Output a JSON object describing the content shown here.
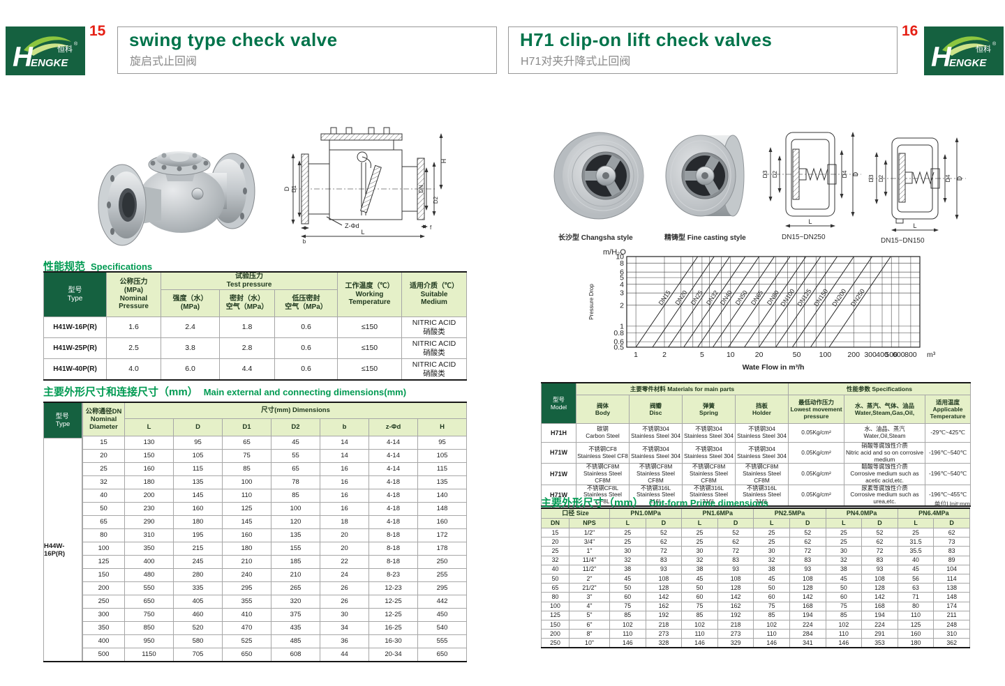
{
  "header": {
    "left": {
      "num": "15",
      "title": "swing type check valve",
      "subtitle": "旋启式止回阀"
    },
    "right": {
      "num": "16",
      "title": "H71 clip-on lift check valves",
      "subtitle": "H71对夹升降式止回阀"
    },
    "logo": {
      "h": "H",
      "en": "ENGKE",
      "cn": "恒科",
      "reg": "®"
    },
    "colors": {
      "brand_green": "#156140",
      "title_green": "#00734a",
      "accent_green": "#009a52",
      "page_red": "#e51f14",
      "cell_green": "#e5f0c8"
    }
  },
  "left_page": {
    "spec_title_cn": "性能规范",
    "spec_title_en": "Specifications",
    "spec_table": {
      "h_type": "型号\nType",
      "h_nominal": "公称压力\n(MPa)\nNominal\nPressure",
      "h_test": "试验压力\nTest pressure",
      "h_strength": "强度（水）\n(MPa)",
      "h_seal": "密封（水）\n空气（MPa）",
      "h_low": "低压密封\n空气（MPa）",
      "h_working": "工作温度（℃）\nWorking\nTemperature",
      "h_medium": "适用介质（℃）\nSuitable\nMedium",
      "rows": [
        [
          "H41W-16P(R)",
          "1.6",
          "2.4",
          "1.8",
          "0.6",
          "≤150",
          "NITRIC ACID\n硝酸类"
        ],
        [
          "H41W-25P(R)",
          "2.5",
          "3.8",
          "2.8",
          "0.6",
          "≤150",
          "NITRIC ACID\n硝酸类"
        ],
        [
          "H41W-40P(R)",
          "4.0",
          "6.0",
          "4.4",
          "0.6",
          "≤150",
          "NITRIC ACID\n硝酸类"
        ]
      ]
    },
    "dims_title_cn": "主要外形尺寸和连接尺寸（mm）",
    "dims_title_en": "Main external and connecting dimensions(mm)",
    "dims_table": {
      "h_type": "型号\nType",
      "h_dn": "公称通径DN\nNominal\nDiameter",
      "h_dims": "尺寸(mm) Dimensions",
      "cols": [
        "L",
        "D",
        "D1",
        "D2",
        "b",
        "z-Φd",
        "H"
      ],
      "type_value": "H44W-16P(R)",
      "rows": [
        [
          "15",
          "130",
          "95",
          "65",
          "45",
          "14",
          "4-14",
          "95"
        ],
        [
          "20",
          "150",
          "105",
          "75",
          "55",
          "14",
          "4-14",
          "105"
        ],
        [
          "25",
          "160",
          "115",
          "85",
          "65",
          "16",
          "4-14",
          "115"
        ],
        [
          "32",
          "180",
          "135",
          "100",
          "78",
          "16",
          "4-18",
          "135"
        ],
        [
          "40",
          "200",
          "145",
          "110",
          "85",
          "16",
          "4-18",
          "140"
        ],
        [
          "50",
          "230",
          "160",
          "125",
          "100",
          "16",
          "4-18",
          "148"
        ],
        [
          "65",
          "290",
          "180",
          "145",
          "120",
          "18",
          "4-18",
          "160"
        ],
        [
          "80",
          "310",
          "195",
          "160",
          "135",
          "20",
          "8-18",
          "172"
        ],
        [
          "100",
          "350",
          "215",
          "180",
          "155",
          "20",
          "8-18",
          "178"
        ],
        [
          "125",
          "400",
          "245",
          "210",
          "185",
          "22",
          "8-18",
          "250"
        ],
        [
          "150",
          "480",
          "280",
          "240",
          "210",
          "24",
          "8-23",
          "255"
        ],
        [
          "200",
          "550",
          "335",
          "295",
          "265",
          "26",
          "12-23",
          "295"
        ],
        [
          "250",
          "650",
          "405",
          "355",
          "320",
          "26",
          "12-25",
          "442"
        ],
        [
          "300",
          "750",
          "460",
          "410",
          "375",
          "30",
          "12-25",
          "450"
        ],
        [
          "350",
          "850",
          "520",
          "470",
          "435",
          "34",
          "16-25",
          "540"
        ],
        [
          "400",
          "950",
          "580",
          "525",
          "485",
          "36",
          "16-30",
          "555"
        ],
        [
          "500",
          "1150",
          "705",
          "650",
          "608",
          "44",
          "20-34",
          "650"
        ]
      ]
    },
    "drawing_labels": {
      "d": "D",
      "d1": "D1",
      "h": "H",
      "dn": "DN",
      "d2": "D2",
      "zphid": "Z-Φd",
      "b": "b",
      "l": "L",
      "f": "f"
    }
  },
  "right_page": {
    "captions": {
      "photo1": "长沙型 Changsha style",
      "photo2": "精铸型 Fine casting style",
      "drawing1": "DN15~DN250",
      "drawing2": "DN15~DN150"
    },
    "drawing_labels": {
      "d3": "D3",
      "d2": "D2",
      "d4": "D4",
      "d": "D",
      "l": "L"
    },
    "materials_table": {
      "h_model": "型号\nModel",
      "h_materials": "主要零件材料 Materials for main parts",
      "h_body": "阀体\nBody",
      "h_disc": "阀瓣\nDisc",
      "h_spring": "弹簧\nSpring",
      "h_holder": "挡板\nHolder",
      "h_specs": "性能参数 Specifications",
      "h_pressure": "最低动作压力\nLowest movement\npressure",
      "h_media": "水、蒸汽、气体、油品\nWater,Steam,Gas,Oil,",
      "h_temp": "适用温度\nApplicable\nTemperature",
      "rows": [
        [
          "H71H",
          "碳钢\nCarbon Steel",
          "不锈钢304\nStainless Steel 304",
          "不锈钢304\nStainless Steel 304",
          "不锈钢304\nStainless Steel 304",
          "0.05Kg/cm²",
          "水、油品、蒸汽\nWater,Oil,Steam",
          "-29℃~425℃"
        ],
        [
          "H71W",
          "不锈钢CF8\nStainless Steel CF8",
          "不锈钢304\nStainless Steel 304",
          "不锈钢304\nStainless Steel 304",
          "不锈钢304\nStainless Steel 304",
          "0.05Kg/cm²",
          "硝酸等腐蚀性介质\nNitric acid and so on corrosive medium",
          "-196℃~540℃"
        ],
        [
          "H71W",
          "不锈钢CF8M\nStainless Steel CF8M",
          "不锈钢CF8M\nStainless Steel CF8M",
          "不锈钢CF8M\nStainless Steel CF8M",
          "不锈钢CF8M\nStainless Steel CF8M",
          "0.05Kg/cm²",
          "醋酸等腐蚀性介质\nCorrosive medium such as acetic acid,etc.",
          "-196℃~540℃"
        ],
        [
          "H71W",
          "不锈钢CF8L\nStainless Steel CF8L",
          "不锈钢316L\nStainless Steel 316L",
          "不锈钢316L\nStainless Steel 316L",
          "不锈钢316L\nStainless Steel 316L",
          "0.05Kg/cm²",
          "尿素等腐蚀性介质\nCorrosive medium such as urea,etc.",
          "-196℃~455℃"
        ]
      ]
    },
    "outform_title_cn": "主要外形尺寸（mm）",
    "outform_title_en": "Out-form Prime dimensions",
    "outform_unit": "单位Unit:mm",
    "outform_table": {
      "h_size": "口径 Size",
      "h_dn": "DN",
      "h_nps": "NPS",
      "pn_groups": [
        "PN1.0MPa",
        "PN1.6MPa",
        "PN2.5MPa",
        "PN4.0MPa",
        "PN6.4MPa"
      ],
      "h_l": "L",
      "h_d": "D",
      "rows": [
        [
          "15",
          "1/2\"",
          "25",
          "52",
          "25",
          "52",
          "25",
          "52",
          "25",
          "52",
          "25",
          "62"
        ],
        [
          "20",
          "3/4\"",
          "25",
          "62",
          "25",
          "62",
          "25",
          "62",
          "25",
          "62",
          "31.5",
          "73"
        ],
        [
          "25",
          "1\"",
          "30",
          "72",
          "30",
          "72",
          "30",
          "72",
          "30",
          "72",
          "35.5",
          "83"
        ],
        [
          "32",
          "11/4\"",
          "32",
          "83",
          "32",
          "83",
          "32",
          "83",
          "32",
          "83",
          "40",
          "89"
        ],
        [
          "40",
          "11/2\"",
          "38",
          "93",
          "38",
          "93",
          "38",
          "93",
          "38",
          "93",
          "45",
          "104"
        ],
        [
          "50",
          "2\"",
          "45",
          "108",
          "45",
          "108",
          "45",
          "108",
          "45",
          "108",
          "56",
          "114"
        ],
        [
          "65",
          "21/2\"",
          "50",
          "128",
          "50",
          "128",
          "50",
          "128",
          "50",
          "128",
          "63",
          "138"
        ],
        [
          "80",
          "3\"",
          "60",
          "142",
          "60",
          "142",
          "60",
          "142",
          "60",
          "142",
          "71",
          "148"
        ],
        [
          "100",
          "4\"",
          "75",
          "162",
          "75",
          "162",
          "75",
          "168",
          "75",
          "168",
          "80",
          "174"
        ],
        [
          "125",
          "5\"",
          "85",
          "192",
          "85",
          "192",
          "85",
          "194",
          "85",
          "194",
          "110",
          "211"
        ],
        [
          "150",
          "6\"",
          "102",
          "218",
          "102",
          "218",
          "102",
          "224",
          "102",
          "224",
          "125",
          "248"
        ],
        [
          "200",
          "8\"",
          "110",
          "273",
          "110",
          "273",
          "110",
          "284",
          "110",
          "291",
          "160",
          "310"
        ],
        [
          "250",
          "10\"",
          "146",
          "328",
          "146",
          "329",
          "146",
          "341",
          "146",
          "353",
          "180",
          "362"
        ]
      ]
    }
  },
  "chart_data": {
    "type": "line",
    "title": "",
    "x_label": "Wate Flow in m³/h",
    "x_unit": "m³/h",
    "y_label": "Pressure Drop",
    "y_unit": "m/H₂O",
    "x_scale": "log",
    "y_scale": "log",
    "x_range": [
      0.8,
      1000
    ],
    "y_range": [
      0.5,
      10
    ],
    "x_ticks": [
      1,
      2,
      5,
      10,
      20,
      50,
      100,
      200,
      300,
      400,
      500,
      600,
      800
    ],
    "x_grid": [
      1,
      2,
      3,
      4,
      5,
      6,
      8,
      10,
      20,
      30,
      40,
      50,
      60,
      80,
      100,
      200,
      300,
      400,
      500,
      600,
      800
    ],
    "y_ticks": [
      10,
      8,
      6,
      5,
      4,
      3,
      2,
      1,
      0.8,
      0.6,
      0.5
    ],
    "y_grid": [
      0.5,
      0.6,
      0.8,
      1,
      2,
      3,
      4,
      5,
      6,
      8,
      10
    ],
    "grid": true,
    "legend": "labels-on-lines",
    "series": [
      {
        "name": "DN15",
        "points": [
          [
            1,
            0.5
          ],
          [
            4.5,
            10
          ]
        ]
      },
      {
        "name": "DN20",
        "points": [
          [
            1.5,
            0.5
          ],
          [
            6.7,
            10
          ]
        ]
      },
      {
        "name": "DN25",
        "points": [
          [
            2.2,
            0.5
          ],
          [
            9.8,
            10
          ]
        ]
      },
      {
        "name": "DN32",
        "points": [
          [
            3.2,
            0.5
          ],
          [
            14.3,
            10
          ]
        ]
      },
      {
        "name": "DN40",
        "points": [
          [
            4.5,
            0.5
          ],
          [
            20,
            10
          ]
        ]
      },
      {
        "name": "DN50",
        "points": [
          [
            6.5,
            0.5
          ],
          [
            29,
            10
          ]
        ]
      },
      {
        "name": "DN65",
        "points": [
          [
            9.5,
            0.5
          ],
          [
            42.5,
            10
          ]
        ]
      },
      {
        "name": "DN80",
        "points": [
          [
            14,
            0.5
          ],
          [
            62.6,
            10
          ]
        ]
      },
      {
        "name": "DN100",
        "points": [
          [
            20,
            0.5
          ],
          [
            89.4,
            10
          ]
        ]
      },
      {
        "name": "DN125",
        "points": [
          [
            30,
            0.5
          ],
          [
            134,
            10
          ]
        ]
      },
      {
        "name": "DN150",
        "points": [
          [
            45,
            0.5
          ],
          [
            201,
            10
          ]
        ]
      },
      {
        "name": "DN200",
        "points": [
          [
            70,
            0.5
          ],
          [
            313,
            10
          ]
        ]
      },
      {
        "name": "DN250",
        "points": [
          [
            110,
            0.5
          ],
          [
            492,
            10
          ]
        ]
      }
    ]
  }
}
